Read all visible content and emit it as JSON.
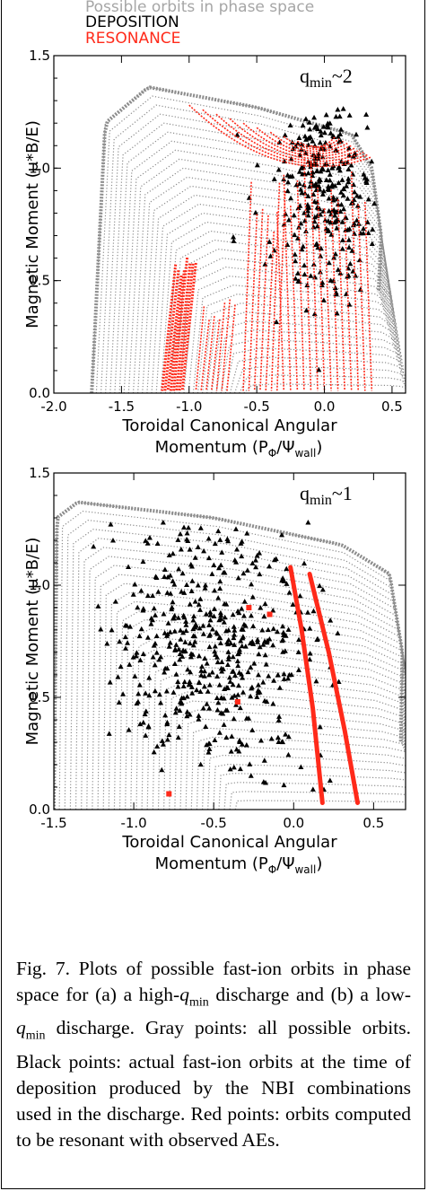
{
  "legend": {
    "gray": "Possible orbits in phase space",
    "black": "DEPOSITION",
    "red": "RESONANCE"
  },
  "colors": {
    "gray": "#8c8c8c",
    "black": "#000000",
    "red": "#ff2a1a"
  },
  "chart_data": [
    {
      "type": "scatter",
      "annotation": "q",
      "annotation_sub": "min",
      "annotation_suffix": "~2",
      "xlabel": "Toroidal Canonical Angular",
      "xlabel2": "Momentum (P",
      "xlabel2_sub1": "Φ",
      "xlabel2_mid": "/Ψ",
      "xlabel2_sub2": "wall",
      "xlabel2_end": ")",
      "ylabel": "Magnetic Moment (μ*B/E)",
      "xlim": [
        -2.0,
        0.6
      ],
      "ylim": [
        0.0,
        1.5
      ],
      "xticks": [
        "-2.0",
        "-1.5",
        "-1.0",
        "-0.5",
        "0.0",
        "0.5"
      ],
      "xtick_values": [
        -2.0,
        -1.5,
        -1.0,
        -0.5,
        0.0,
        0.5
      ],
      "yticks": [
        "0.0",
        "0.5",
        "1.0",
        "1.5"
      ],
      "ytick_values": [
        0.0,
        0.5,
        1.0,
        1.5
      ],
      "series": [
        {
          "name": "Possible orbits in phase space",
          "region": {
            "left_edge": [
              [
                -1.72,
                0.0
              ],
              [
                -1.62,
                1.2
              ],
              [
                -1.3,
                1.36
              ]
            ],
            "top_edge": [
              [
                -1.3,
                1.36
              ],
              [
                -0.5,
                1.27
              ],
              [
                0.2,
                1.15
              ],
              [
                0.35,
                1.0
              ]
            ],
            "right_edge": [
              [
                0.35,
                1.0
              ],
              [
                0.42,
                0.7
              ],
              [
                0.4,
                0.45
              ]
            ]
          }
        },
        {
          "name": "DEPOSITION",
          "region": {
            "center": [
              -0.05,
              1.0
            ],
            "x_range": [
              -1.0,
              0.45
            ],
            "y_range": [
              0.0,
              1.3
            ]
          }
        },
        {
          "name": "RESONANCE",
          "bands": [
            {
              "x0": -1.2,
              "x1": -1.05,
              "y_top": 0.63
            },
            {
              "x0": -0.95,
              "x1": -0.72,
              "y_top": 0.42
            },
            {
              "x0": -0.6,
              "x1": -0.35,
              "y_top": 0.95
            },
            {
              "x0": -0.3,
              "x1": 0.35,
              "y_top": 1.05
            }
          ]
        }
      ]
    },
    {
      "type": "scatter",
      "annotation": "q",
      "annotation_sub": "min",
      "annotation_suffix": "~1",
      "xlabel": "Toroidal Canonical Angular",
      "xlabel2": "Momentum (P",
      "xlabel2_sub1": "Φ",
      "xlabel2_mid": "/Ψ",
      "xlabel2_sub2": "wall",
      "xlabel2_end": ")",
      "ylabel": "Magnetic Moment (μ*B/E)",
      "xlim": [
        -1.5,
        0.7
      ],
      "ylim": [
        0.0,
        1.5
      ],
      "xticks": [
        "-1.5",
        "-1.0",
        "-0.5",
        "0.0",
        "0.5"
      ],
      "xtick_values": [
        -1.5,
        -1.0,
        -0.5,
        0.0,
        0.5
      ],
      "yticks": [
        "0.0",
        "0.5",
        "1.0",
        "1.5"
      ],
      "ytick_values": [
        0.0,
        0.5,
        1.0,
        1.5
      ],
      "series": [
        {
          "name": "Possible orbits in phase space",
          "region": {
            "left_edge": [
              [
                -1.5,
                0.0
              ],
              [
                -1.48,
                1.3
              ],
              [
                -1.35,
                1.37
              ]
            ],
            "top_edge": [
              [
                -1.35,
                1.37
              ],
              [
                -0.5,
                1.3
              ],
              [
                0.3,
                1.18
              ],
              [
                0.6,
                1.05
              ]
            ],
            "right_edge": [
              [
                0.6,
                1.05
              ],
              [
                0.68,
                0.7
              ],
              [
                0.67,
                0.3
              ]
            ]
          }
        },
        {
          "name": "DEPOSITION",
          "region": {
            "center": [
              -0.25,
              0.85
            ],
            "x_range": [
              -1.4,
              0.4
            ],
            "y_range": [
              0.05,
              1.3
            ]
          }
        },
        {
          "name": "RESONANCE",
          "lines": [
            [
              [
                -0.02,
                1.08
              ],
              [
                0.05,
                0.8
              ],
              [
                0.12,
                0.45
              ],
              [
                0.18,
                0.03
              ]
            ],
            [
              [
                0.1,
                1.05
              ],
              [
                0.22,
                0.7
              ],
              [
                0.32,
                0.35
              ],
              [
                0.4,
                0.03
              ]
            ]
          ],
          "points": [
            [
              -0.28,
              0.9
            ],
            [
              -0.35,
              0.48
            ],
            [
              -0.78,
              0.07
            ],
            [
              -0.15,
              0.87
            ]
          ]
        }
      ]
    }
  ],
  "caption": {
    "p1": "Fig. 7. Plots of possible fast-ion orbits in phase space for (a) a high-",
    "q1": "q",
    "q1sub": "min",
    "p2": " discharge and (b) a low-",
    "q2": "q",
    "q2sub": "min",
    "p3": " discharge. Gray points: all possible orbits. Black points: actual fast-ion orbits at the time of deposition produced by the NBI combinations used in the discharge. Red points: orbits computed to be resonant with observed AEs."
  }
}
